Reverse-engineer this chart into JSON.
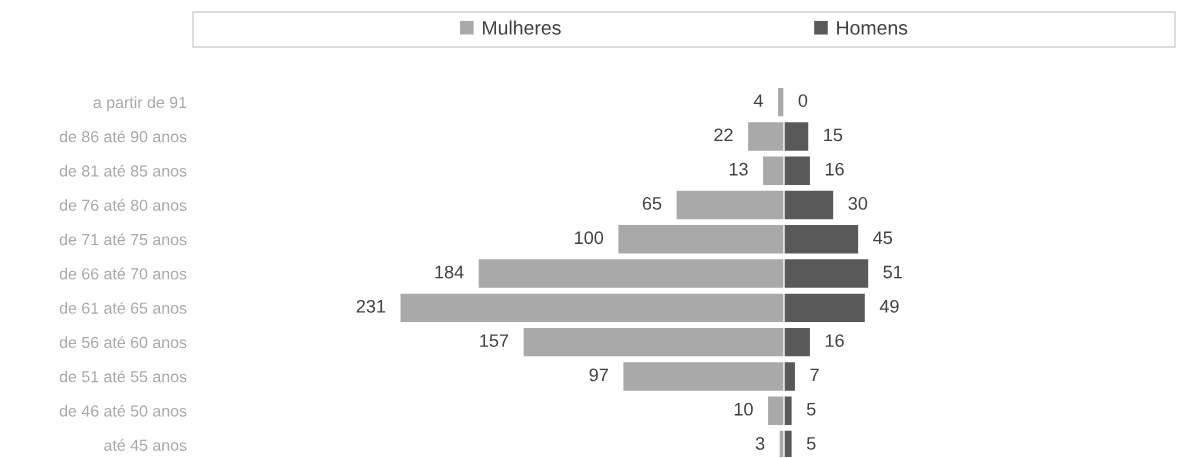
{
  "chart_data": [
    {
      "type": "bar",
      "orientation": "horizontal",
      "categories": [
        "a partir de 91",
        "de 86 até 90 anos",
        "de 81 até 85 anos",
        "de 76 até 80 anos",
        "de 71 até 75 anos",
        "de 66 até 70 anos",
        "de 61 até 65 anos",
        "de 56 até 60 anos",
        "de 51 até 55 anos",
        "de 46 até 50 anos",
        "até 45 anos"
      ],
      "series": [
        {
          "name": "Mulheres",
          "color": "#a9a9a9",
          "values": [
            4,
            22,
            13,
            65,
            100,
            184,
            231,
            157,
            97,
            10,
            3
          ]
        }
      ],
      "xlim": [
        231,
        0
      ],
      "data_labels": true,
      "tick_labels": "y",
      "legend": "top",
      "grid": false
    },
    {
      "type": "bar",
      "orientation": "horizontal",
      "categories": [
        null,
        null,
        null,
        null,
        null,
        null,
        null,
        null,
        null,
        null,
        null
      ],
      "series": [
        {
          "name": "Homens",
          "color": "#595959",
          "values": [
            0,
            15,
            16,
            30,
            45,
            51,
            49,
            16,
            7,
            5,
            5
          ]
        }
      ],
      "xlim": [
        0,
        51
      ],
      "data_labels": true,
      "tick_labels": false,
      "legend": "top",
      "grid": false
    }
  ]
}
